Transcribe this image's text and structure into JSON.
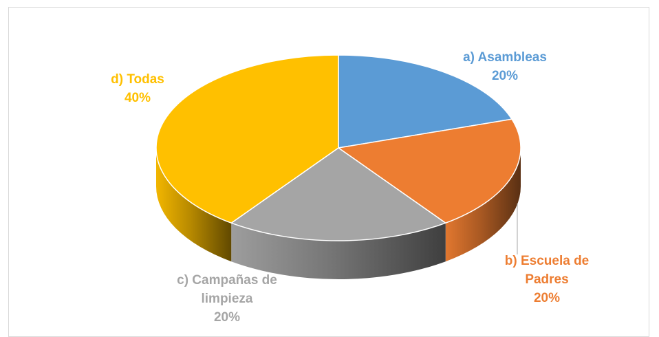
{
  "chart_data": {
    "type": "pie",
    "style": "3d",
    "slices": [
      {
        "name_lines": [
          "a) Asambleas"
        ],
        "value": 20,
        "pct_label": "20%",
        "color": "#5B9BD5"
      },
      {
        "name_lines": [
          "b) Escuela de",
          "Padres"
        ],
        "value": 20,
        "pct_label": "20%",
        "color": "#ED7D31"
      },
      {
        "name_lines": [
          "c) Campañas de",
          "limpieza"
        ],
        "value": 20,
        "pct_label": "20%",
        "color": "#A5A5A5"
      },
      {
        "name_lines": [
          "d) Todas"
        ],
        "value": 40,
        "pct_label": "40%",
        "color": "#FFC000"
      }
    ],
    "legend": "none"
  }
}
